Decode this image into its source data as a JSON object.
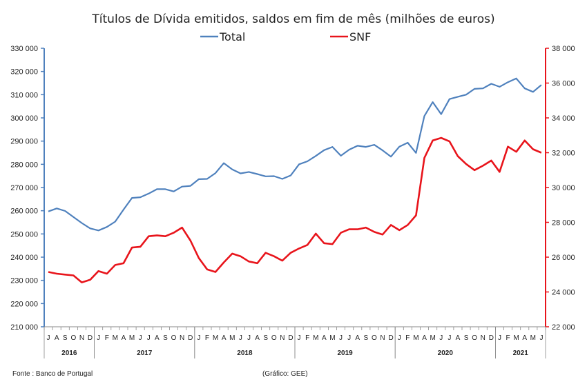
{
  "chart_data": {
    "type": "line",
    "title": "Títulos de Dívida emitidos, saldos em fim de mês  (milhões de euros)",
    "legend_position": "top-center",
    "grid": false,
    "source": "Fonte : Banco de Portugal",
    "credit": "(Gráfico: GEE)",
    "months": [
      "J",
      "A",
      "S",
      "O",
      "N",
      "D",
      "J",
      "F",
      "M",
      "A",
      "M",
      "J",
      "J",
      "A",
      "S",
      "O",
      "N",
      "D",
      "J",
      "F",
      "M",
      "A",
      "M",
      "J",
      "J",
      "A",
      "S",
      "O",
      "N",
      "D",
      "J",
      "F",
      "M",
      "A",
      "M",
      "J",
      "J",
      "A",
      "S",
      "O",
      "N",
      "D",
      "J",
      "F",
      "M",
      "A",
      "M",
      "J",
      "J",
      "A",
      "S",
      "O",
      "N",
      "D",
      "J",
      "F",
      "M",
      "A",
      "M",
      "J"
    ],
    "years": [
      {
        "label": "2016",
        "start": 0,
        "count": 6
      },
      {
        "label": "2017",
        "start": 6,
        "count": 12
      },
      {
        "label": "2018",
        "start": 18,
        "count": 12
      },
      {
        "label": "2019",
        "start": 30,
        "count": 12
      },
      {
        "label": "2020",
        "start": 42,
        "count": 12
      },
      {
        "label": "2021",
        "start": 54,
        "count": 6
      }
    ],
    "y_left": {
      "min": 210000,
      "max": 330000,
      "step": 10000,
      "tick_labels": [
        "210 000",
        "220 000",
        "230 000",
        "240 000",
        "250 000",
        "260 000",
        "270 000",
        "280 000",
        "290 000",
        "300 000",
        "310 000",
        "320 000",
        "330 000"
      ],
      "color": "#4f81bd"
    },
    "y_right": {
      "min": 22000,
      "max": 38000,
      "step": 2000,
      "tick_labels": [
        "22 000",
        "24 000",
        "26 000",
        "28 000",
        "30 000",
        "32 000",
        "34 000",
        "36 000",
        "38 000"
      ],
      "color": "#e8141b"
    },
    "series": [
      {
        "name": "Total",
        "axis": "left",
        "color": "#4f81bd",
        "values": [
          259700,
          261000,
          259900,
          257300,
          254700,
          252400,
          251500,
          253000,
          255300,
          260500,
          265500,
          265800,
          267400,
          269300,
          269300,
          268300,
          270400,
          270700,
          273600,
          273700,
          276200,
          280500,
          277800,
          276100,
          276700,
          275800,
          274800,
          274900,
          273700,
          275200,
          280000,
          281300,
          283600,
          286100,
          287500,
          283700,
          286300,
          288000,
          287500,
          288400,
          286000,
          283300,
          287600,
          289300,
          284900,
          300800,
          306800,
          301600,
          308100,
          309100,
          310000,
          312500,
          312700,
          314700,
          313400,
          315400,
          317000,
          312700,
          311200,
          314200
        ]
      },
      {
        "name": "SNF",
        "axis": "right",
        "color": "#e8141b",
        "values": [
          25150,
          25050,
          25000,
          24950,
          24550,
          24700,
          25200,
          25050,
          25550,
          25650,
          26550,
          26600,
          27200,
          27250,
          27200,
          27400,
          27700,
          26950,
          25950,
          25300,
          25150,
          25700,
          26200,
          26050,
          25750,
          25650,
          26250,
          26050,
          25800,
          26250,
          26500,
          26700,
          27350,
          26800,
          26750,
          27400,
          27600,
          27600,
          27700,
          27450,
          27300,
          27850,
          27550,
          27850,
          28400,
          31700,
          32700,
          32850,
          32650,
          31800,
          31350,
          31000,
          31250,
          31550,
          30900,
          32350,
          32050,
          32700,
          32200,
          32000
        ]
      }
    ]
  }
}
